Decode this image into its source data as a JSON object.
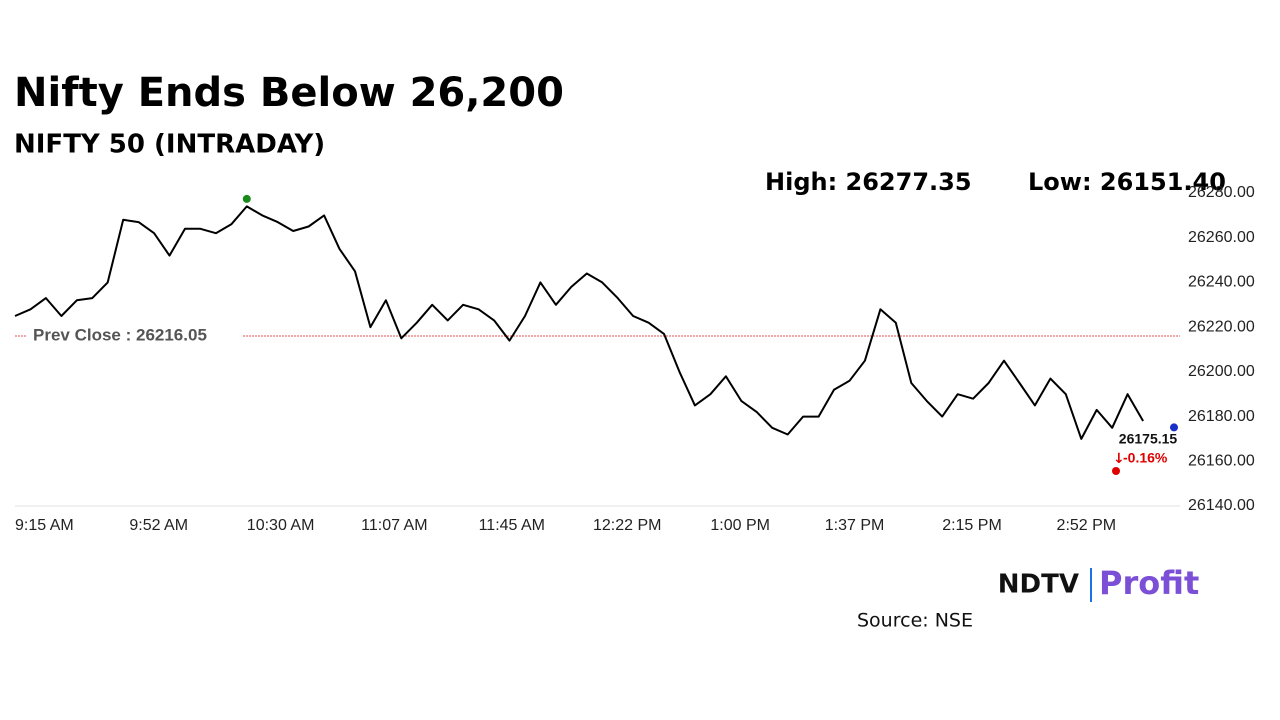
{
  "chart_data": {
    "type": "line",
    "title": "Nifty Ends Below 26,200",
    "subtitle": "NIFTY 50 (INTRADAY)",
    "high_label": "High: 26277.35",
    "low_label": "Low: 26151.40",
    "high": 26277.35,
    "high_x": "10:30 AM",
    "prev_close": 26216.05,
    "prev_close_label": "Prev Close : 26216.05",
    "last_label": "26175.15",
    "change_label": "-0.16%",
    "source": "Source: NSE",
    "logo_left": "NDTV",
    "logo_right": "Profit",
    "x": [
      "9:15 AM",
      "9:20 AM",
      "9:25 AM",
      "9:30 AM",
      "9:35 AM",
      "9:40 AM",
      "9:45 AM",
      "9:50 AM",
      "9:55 AM",
      "10:00 AM",
      "10:05 AM",
      "10:10 AM",
      "10:15 AM",
      "10:20 AM",
      "10:25 AM",
      "10:30 AM",
      "10:35 AM",
      "10:40 AM",
      "10:45 AM",
      "10:50 AM",
      "10:55 AM",
      "11:00 AM",
      "11:05 AM",
      "11:10 AM",
      "11:15 AM",
      "11:20 AM",
      "11:25 AM",
      "11:30 AM",
      "11:35 AM",
      "11:40 AM",
      "11:45 AM",
      "11:50 AM",
      "11:55 AM",
      "12:00 PM",
      "12:05 PM",
      "12:10 PM",
      "12:15 PM",
      "12:20 PM",
      "12:25 PM",
      "12:30 PM",
      "12:35 PM",
      "12:40 PM",
      "12:45 PM",
      "12:50 PM",
      "12:55 PM",
      "1:00 PM",
      "1:05 PM",
      "1:10 PM",
      "1:15 PM",
      "1:20 PM",
      "1:25 PM",
      "1:30 PM",
      "1:35 PM",
      "1:40 PM",
      "1:45 PM",
      "1:50 PM",
      "1:55 PM",
      "2:00 PM",
      "2:05 PM",
      "2:10 PM",
      "2:15 PM",
      "2:20 PM",
      "2:25 PM",
      "2:30 PM",
      "2:35 PM",
      "2:40 PM",
      "2:45 PM",
      "2:50 PM",
      "2:55 PM",
      "3:00 PM",
      "3:05 PM",
      "3:10 PM",
      "3:15 PM",
      "3:20 PM",
      "3:25 PM",
      "3:30 PM"
    ],
    "series": [
      {
        "name": "NIFTY 50",
        "color": "#000000",
        "values": [
          26225,
          26228,
          26233,
          26225,
          26232,
          26233,
          26240,
          26268,
          26267,
          26262,
          26252,
          26264,
          26264,
          26262,
          26266,
          26274,
          26270,
          26267,
          26263,
          26265,
          26270,
          26255,
          26245,
          26220,
          26232,
          26215,
          26222,
          26230,
          26223,
          26230,
          26228,
          26223,
          26214,
          26225,
          26240,
          26230,
          26238,
          26244,
          26240,
          26233,
          26225,
          26222,
          26217,
          26200,
          26185,
          26190,
          26198,
          26187,
          26182,
          26175,
          26172,
          26180,
          26180,
          26192,
          26196,
          26205,
          26228,
          26222,
          26195,
          26187,
          26180,
          26190,
          26188,
          26195,
          26205,
          26195,
          26185,
          26197,
          26190,
          26170,
          26183,
          26175,
          26190,
          26178,
          null,
          26175.15
        ]
      }
    ],
    "xlim": [
      "9:15 AM",
      "3:30 PM"
    ],
    "xticks": [
      "9:15 AM",
      "9:52 AM",
      "10:30 AM",
      "11:07 AM",
      "11:45 AM",
      "12:22 PM",
      "1:00 PM",
      "1:37 PM",
      "2:15 PM",
      "2:52 PM"
    ],
    "ylim": [
      26140,
      26280
    ],
    "yticks": [
      {
        "value": 26140,
        "label": "26140.00"
      },
      {
        "value": 26160,
        "label": "26160.00"
      },
      {
        "value": 26180,
        "label": "26180.00"
      },
      {
        "value": 26200,
        "label": "26200.00"
      },
      {
        "value": 26220,
        "label": "26220.00"
      },
      {
        "value": 26240,
        "label": "26240.00"
      },
      {
        "value": 26260,
        "label": "26260.00"
      },
      {
        "value": 26280,
        "label": "26280.00"
      }
    ]
  }
}
